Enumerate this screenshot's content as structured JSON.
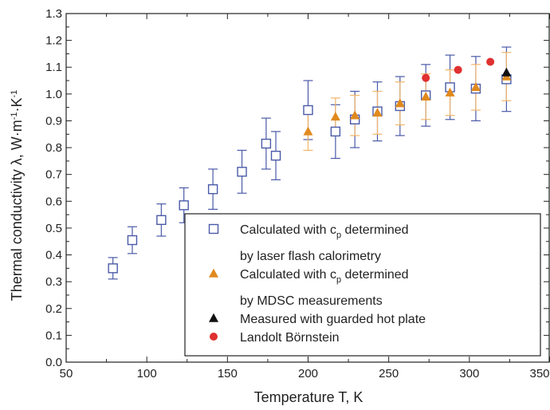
{
  "chart_data": {
    "type": "scatter",
    "xlabel": "Temperature T, K",
    "ylabel_parts": [
      "Thermal conductivity λ, W·m",
      "-1",
      "·K",
      "-1"
    ],
    "xlim": [
      50,
      350
    ],
    "ylim": [
      0.0,
      1.3
    ],
    "xticks": [
      "50",
      "100",
      "150",
      "200",
      "250",
      "300",
      "350"
    ],
    "yticks": [
      "0.0",
      "0.1",
      "0.2",
      "0.3",
      "0.4",
      "0.5",
      "0.6",
      "0.7",
      "0.8",
      "0.9",
      "1.0",
      "1.1",
      "1.2",
      "1.3"
    ],
    "grid": false,
    "legend_position": "lower-right",
    "series": [
      {
        "key": "laser",
        "marker": "open-square",
        "color": "#4a5aa8",
        "legend_lines": [
          {
            "text": "Calculated with c",
            "sub": "p",
            "tail": " determined"
          },
          {
            "text": "by laser flash calorimetry"
          }
        ],
        "x": [
          79,
          91,
          109,
          123,
          141,
          159,
          174,
          180,
          200,
          217,
          229,
          243,
          257,
          273,
          288,
          304,
          323
        ],
        "y": [
          0.35,
          0.455,
          0.53,
          0.585,
          0.645,
          0.71,
          0.815,
          0.77,
          0.94,
          0.86,
          0.905,
          0.935,
          0.955,
          0.995,
          1.025,
          1.02,
          1.055
        ],
        "err": [
          0.04,
          0.05,
          0.06,
          0.065,
          0.075,
          0.08,
          0.095,
          0.09,
          0.11,
          0.1,
          0.105,
          0.11,
          0.11,
          0.115,
          0.12,
          0.12,
          0.12
        ]
      },
      {
        "key": "mdsc",
        "marker": "filled-triangle",
        "color": "#e08a1e",
        "errcolor": "#f2b56a",
        "legend_lines": [
          {
            "text": "Calculated with c",
            "sub": "p",
            "tail": " determined"
          },
          {
            "text": "by MDSC measurements"
          }
        ],
        "x": [
          200,
          217,
          229,
          243,
          257,
          273,
          288,
          304,
          323
        ],
        "y": [
          0.86,
          0.915,
          0.92,
          0.93,
          0.965,
          0.99,
          1.005,
          1.025,
          1.065
        ],
        "err": [
          0.07,
          0.07,
          0.075,
          0.08,
          0.08,
          0.085,
          0.085,
          0.085,
          0.09
        ]
      },
      {
        "key": "ghp",
        "marker": "filled-triangle",
        "color": "#111111",
        "legend_lines": [
          {
            "text": "Measured with guarded hot plate"
          }
        ],
        "x": [
          323
        ],
        "y": [
          1.08
        ],
        "err": []
      },
      {
        "key": "lb",
        "marker": "filled-circle",
        "color": "#e03030",
        "legend_lines": [
          {
            "text": "Landolt Börnstein"
          }
        ],
        "x": [
          273,
          293,
          313
        ],
        "y": [
          1.06,
          1.09,
          1.12
        ],
        "err": []
      }
    ]
  }
}
